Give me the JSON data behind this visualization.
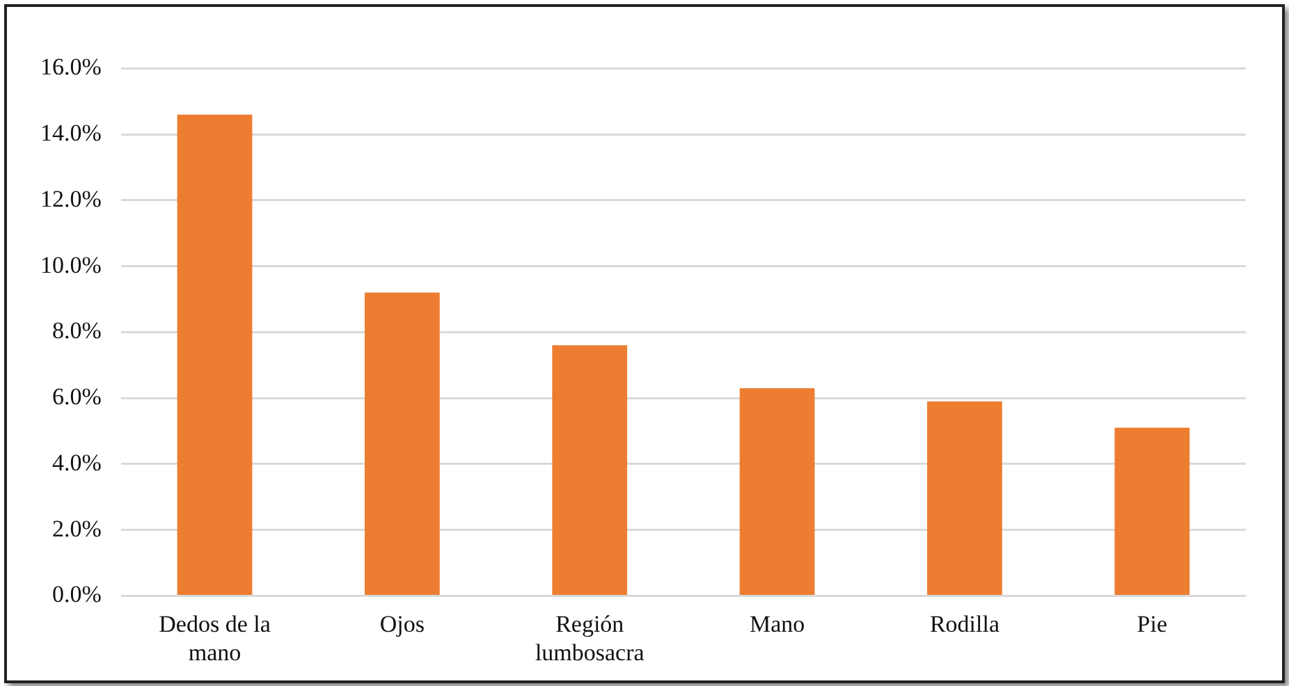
{
  "chart_data": {
    "type": "bar",
    "categories": [
      "Dedos de la mano",
      "Ojos",
      "Región lumbosacra",
      "Mano",
      "Rodilla",
      "Pie"
    ],
    "values": [
      14.6,
      9.2,
      7.6,
      6.3,
      5.9,
      5.1
    ],
    "color": "#ed7d31",
    "ylim": [
      0,
      16
    ],
    "yticks": [
      {
        "value": 0,
        "label": "0.0%"
      },
      {
        "value": 2,
        "label": "2.0%"
      },
      {
        "value": 4,
        "label": "4.0%"
      },
      {
        "value": 6,
        "label": "6.0%"
      },
      {
        "value": 8,
        "label": "8.0%"
      },
      {
        "value": 10,
        "label": "10.0%"
      },
      {
        "value": 12,
        "label": "12.0%"
      },
      {
        "value": 14,
        "label": "14.0%"
      },
      {
        "value": 16,
        "label": "16.0%"
      }
    ],
    "grid": "y",
    "legend": false
  }
}
